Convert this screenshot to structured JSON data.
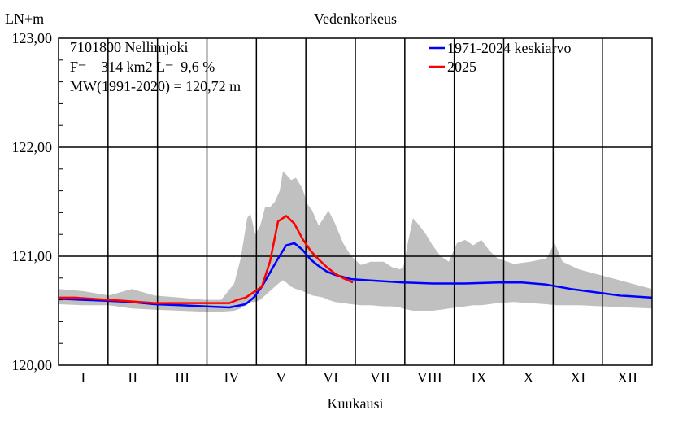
{
  "chart_data": {
    "type": "line",
    "title": "Vedenkorkeus",
    "ylabel": "LN+m",
    "xlabel": "Kuukausi",
    "ylim": [
      120.0,
      123.0
    ],
    "xlim": [
      0,
      365
    ],
    "y_ticks": [
      "120,00",
      "121,00",
      "122,00",
      "123,00"
    ],
    "months": [
      "I",
      "II",
      "III",
      "IV",
      "V",
      "VI",
      "VII",
      "VIII",
      "IX",
      "X",
      "XI",
      "XII"
    ],
    "grid": true,
    "legend_position": "top-right",
    "annotations": [
      "7101800 Nellimjoki",
      "F=    314 km2 L=  9,6 %",
      "MW(1991-2020) = 120,72 m"
    ],
    "series": [
      {
        "name": "1971-2024 keskiarvo",
        "color": "#0000ff",
        "x": [
          0,
          15,
          31,
          45,
          59,
          75,
          90,
          105,
          115,
          120,
          125,
          130,
          135,
          140,
          145,
          150,
          155,
          160,
          165,
          170,
          180,
          190,
          200,
          212,
          230,
          250,
          270,
          285,
          300,
          315,
          330,
          345,
          365
        ],
        "y": [
          120.61,
          120.6,
          120.59,
          120.58,
          120.56,
          120.55,
          120.54,
          120.53,
          120.56,
          120.62,
          120.72,
          120.85,
          120.98,
          121.1,
          121.12,
          121.06,
          120.97,
          120.91,
          120.86,
          120.83,
          120.79,
          120.78,
          120.77,
          120.76,
          120.75,
          120.75,
          120.76,
          120.76,
          120.74,
          120.7,
          120.67,
          120.64,
          120.62
        ]
      },
      {
        "name": "2025",
        "color": "#ff0000",
        "x": [
          0,
          10,
          20,
          31,
          40,
          50,
          59,
          70,
          80,
          90,
          100,
          105,
          110,
          115,
          120,
          125,
          130,
          135,
          140,
          145,
          150,
          155,
          160,
          165,
          170,
          175,
          181
        ],
        "y": [
          120.62,
          120.62,
          120.61,
          120.6,
          120.59,
          120.58,
          120.57,
          120.57,
          120.57,
          120.57,
          120.57,
          120.57,
          120.6,
          120.62,
          120.67,
          120.72,
          120.95,
          121.32,
          121.37,
          121.3,
          121.16,
          121.05,
          120.97,
          120.9,
          120.84,
          120.8,
          120.76
        ]
      }
    ],
    "range_band": {
      "color": "#c0c0c0",
      "x": [
        0,
        15,
        31,
        45,
        59,
        75,
        90,
        100,
        108,
        112,
        116,
        118,
        121,
        124,
        127,
        130,
        133,
        136,
        138,
        140,
        143,
        146,
        150,
        153,
        156,
        160,
        163,
        166,
        170,
        175,
        180,
        186,
        192,
        200,
        205,
        210,
        212,
        215,
        218,
        222,
        226,
        230,
        235,
        240,
        245,
        250,
        255,
        260,
        265,
        270,
        280,
        290,
        300,
        305,
        310,
        320,
        335,
        350,
        365
      ],
      "high": [
        120.7,
        120.68,
        120.64,
        120.7,
        120.64,
        120.62,
        120.6,
        120.6,
        120.75,
        120.98,
        121.35,
        121.39,
        121.2,
        121.28,
        121.45,
        121.45,
        121.5,
        121.6,
        121.78,
        121.75,
        121.7,
        121.72,
        121.62,
        121.48,
        121.42,
        121.28,
        121.35,
        121.42,
        121.3,
        121.12,
        121.0,
        120.92,
        120.95,
        120.95,
        120.9,
        120.88,
        120.9,
        121.14,
        121.35,
        121.28,
        121.2,
        121.1,
        121.0,
        120.95,
        121.12,
        121.15,
        121.1,
        121.15,
        121.05,
        120.98,
        120.93,
        120.95,
        120.98,
        121.12,
        120.95,
        120.88,
        120.82,
        120.76,
        120.7
      ],
      "low": [
        120.56,
        120.55,
        120.55,
        120.52,
        120.51,
        120.5,
        120.49,
        120.49,
        120.5,
        120.52,
        120.56,
        120.58,
        120.58,
        120.6,
        120.64,
        120.68,
        120.72,
        120.76,
        120.78,
        120.76,
        120.72,
        120.7,
        120.68,
        120.66,
        120.64,
        120.63,
        120.62,
        120.6,
        120.58,
        120.57,
        120.56,
        120.55,
        120.55,
        120.54,
        120.54,
        120.53,
        120.52,
        120.51,
        120.5,
        120.5,
        120.5,
        120.5,
        120.51,
        120.52,
        120.53,
        120.54,
        120.55,
        120.55,
        120.56,
        120.57,
        120.58,
        120.57,
        120.56,
        120.55,
        120.55,
        120.55,
        120.54,
        120.53,
        120.52
      ]
    }
  }
}
